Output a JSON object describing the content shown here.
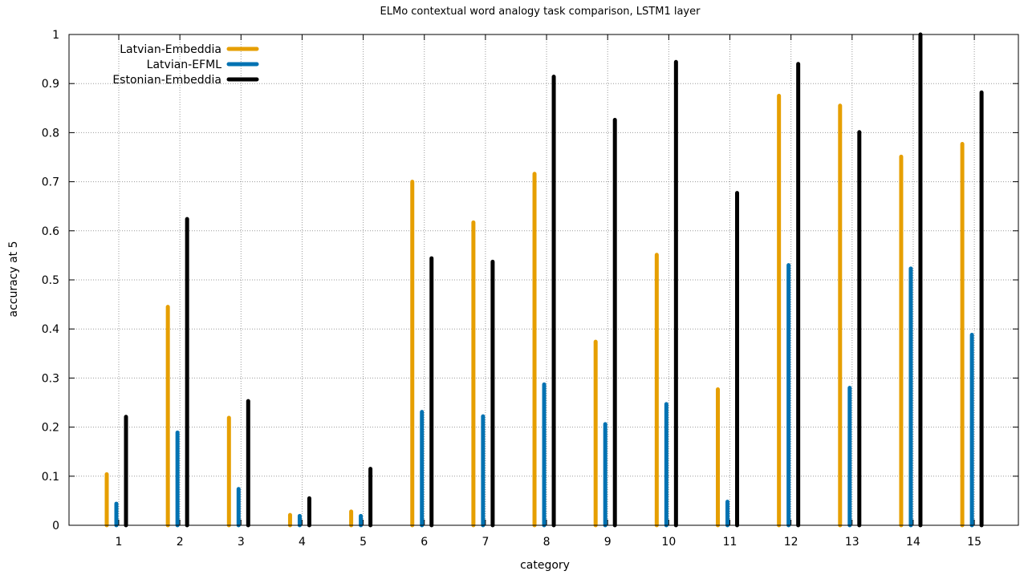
{
  "chart_data": {
    "type": "bar",
    "title": "ELMo contextual word analogy task comparison, LSTM1 layer",
    "xlabel": "category",
    "ylabel": "accuracy at 5",
    "categories": [
      "1",
      "2",
      "3",
      "4",
      "5",
      "6",
      "7",
      "8",
      "9",
      "10",
      "11",
      "12",
      "13",
      "14",
      "15"
    ],
    "ylim": [
      0,
      1
    ],
    "yticks": [
      "0",
      "0.1",
      "0.2",
      "0.3",
      "0.4",
      "0.5",
      "0.6",
      "0.7",
      "0.8",
      "0.9",
      "1"
    ],
    "grid": true,
    "legend_position": "top-left",
    "series": [
      {
        "name": "Latvian-Embeddia",
        "color": "#e69f00",
        "values": [
          0.104,
          0.445,
          0.219,
          0.021,
          0.028,
          0.7,
          0.617,
          0.716,
          0.374,
          0.551,
          0.277,
          0.875,
          0.855,
          0.751,
          0.777
        ]
      },
      {
        "name": "Latvian-EFML",
        "color": "#0072b2",
        "values": [
          0.044,
          0.189,
          0.074,
          0.019,
          0.019,
          0.231,
          0.222,
          0.287,
          0.206,
          0.247,
          0.048,
          0.53,
          0.28,
          0.523,
          0.388
        ]
      },
      {
        "name": "Estonian-Embeddia",
        "color": "#000000",
        "values": [
          0.221,
          0.624,
          0.253,
          0.055,
          0.115,
          0.544,
          0.537,
          0.914,
          0.826,
          0.944,
          0.677,
          0.94,
          0.801,
          1.0,
          0.882
        ]
      }
    ]
  }
}
